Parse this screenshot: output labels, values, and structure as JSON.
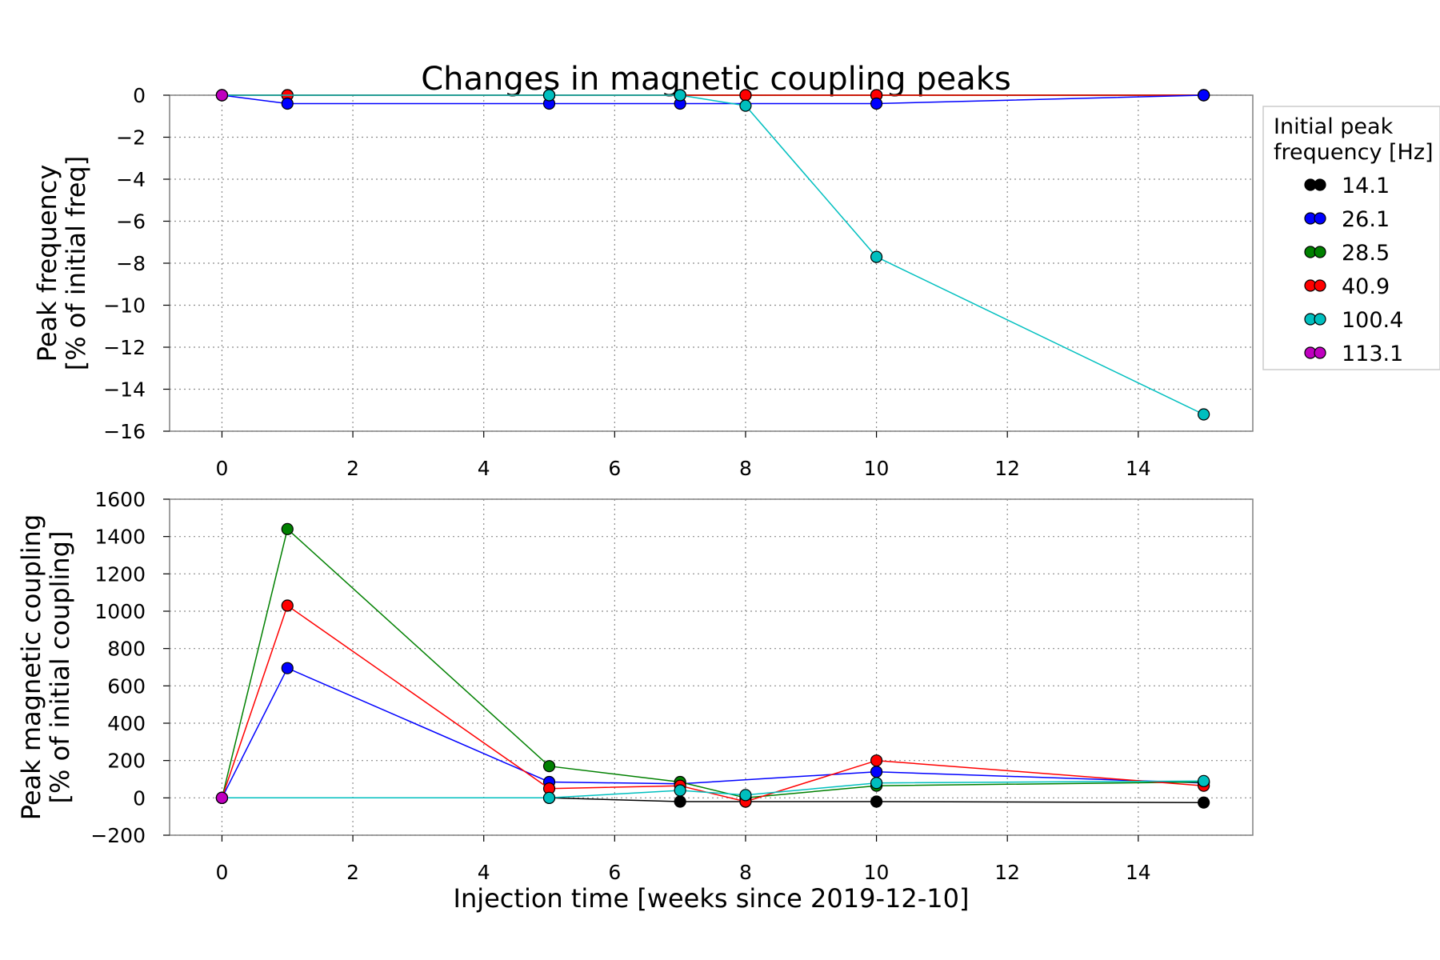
{
  "figure": {
    "title": "Changes in magnetic coupling peaks",
    "xlabel": "Injection time [weeks since 2019-12-10]"
  },
  "legend": {
    "title_line1": "Initial peak",
    "title_line2": "frequency [Hz]",
    "entries": [
      {
        "label": "14.1",
        "color": "#000000"
      },
      {
        "label": "26.1",
        "color": "#0000ff"
      },
      {
        "label": "28.5",
        "color": "#008000"
      },
      {
        "label": "40.9",
        "color": "#ff0000"
      },
      {
        "label": "100.4",
        "color": "#00bfbf"
      },
      {
        "label": "113.1",
        "color": "#bf00bf"
      }
    ]
  },
  "chart_data": [
    {
      "type": "line",
      "ylabel_line1": "Peak frequency",
      "ylabel_line2": "[% of initial freq]",
      "xlim": [
        -0.8,
        15.75
      ],
      "ylim": [
        -16,
        0
      ],
      "xticks": [
        0,
        2,
        4,
        6,
        8,
        10,
        12,
        14
      ],
      "yticks": [
        0,
        -2,
        -4,
        -6,
        -8,
        -10,
        -12,
        -14,
        -16
      ],
      "grid": true,
      "legend_position": "outside-right",
      "series": [
        {
          "name": "14.1",
          "color": "#000000",
          "x": [
            0,
            5,
            7,
            8,
            10,
            15
          ],
          "y": [
            0,
            0,
            0,
            0,
            0,
            0
          ]
        },
        {
          "name": "28.5",
          "color": "#008000",
          "x": [
            0,
            1,
            5,
            7,
            8,
            10,
            15
          ],
          "y": [
            0,
            0,
            0,
            0,
            0,
            0,
            0
          ]
        },
        {
          "name": "40.9",
          "color": "#ff0000",
          "x": [
            0,
            1,
            5,
            7,
            8,
            10,
            15
          ],
          "y": [
            0,
            0,
            0,
            0,
            0,
            0,
            0
          ]
        },
        {
          "name": "26.1",
          "color": "#0000ff",
          "x": [
            0,
            1,
            5,
            7,
            10,
            15
          ],
          "y": [
            0,
            -0.4,
            -0.4,
            -0.4,
            -0.4,
            0
          ]
        },
        {
          "name": "100.4",
          "color": "#00bfbf",
          "x": [
            0,
            5,
            7,
            8,
            10,
            15
          ],
          "y": [
            0,
            0,
            0,
            -0.5,
            -7.7,
            -15.2
          ]
        },
        {
          "name": "113.1",
          "color": "#bf00bf",
          "x": [
            0
          ],
          "y": [
            0
          ]
        }
      ]
    },
    {
      "type": "line",
      "ylabel_line1": "Peak magnetic coupling",
      "ylabel_line2": "[% of initial coupling]",
      "xlim": [
        -0.8,
        15.75
      ],
      "ylim": [
        -200,
        1600
      ],
      "xticks": [
        0,
        2,
        4,
        6,
        8,
        10,
        12,
        14
      ],
      "yticks": [
        1600,
        1400,
        1200,
        1000,
        800,
        600,
        400,
        200,
        0,
        -200
      ],
      "grid": true,
      "series": [
        {
          "name": "14.1",
          "color": "#000000",
          "x": [
            0,
            5,
            7,
            8,
            10,
            15
          ],
          "y": [
            0,
            0,
            -20,
            -20,
            -20,
            -25
          ]
        },
        {
          "name": "26.1",
          "color": "#0000ff",
          "x": [
            0,
            1,
            5,
            7,
            10,
            15
          ],
          "y": [
            0,
            695,
            85,
            75,
            140,
            80
          ]
        },
        {
          "name": "28.5",
          "color": "#008000",
          "x": [
            0,
            1,
            5,
            7,
            8,
            10,
            15
          ],
          "y": [
            0,
            1440,
            170,
            85,
            0,
            65,
            85
          ]
        },
        {
          "name": "40.9",
          "color": "#ff0000",
          "x": [
            0,
            1,
            5,
            7,
            8,
            10,
            15
          ],
          "y": [
            0,
            1030,
            50,
            65,
            -20,
            200,
            65
          ]
        },
        {
          "name": "100.4",
          "color": "#00bfbf",
          "x": [
            0,
            5,
            7,
            8,
            10,
            15
          ],
          "y": [
            0,
            0,
            40,
            15,
            80,
            90
          ]
        },
        {
          "name": "113.1",
          "color": "#bf00bf",
          "x": [
            0
          ],
          "y": [
            0
          ]
        }
      ]
    }
  ]
}
